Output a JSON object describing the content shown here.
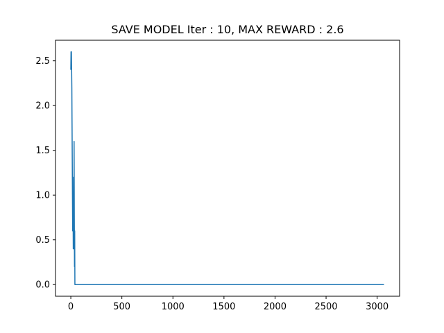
{
  "chart_data": {
    "type": "line",
    "title": "SAVE MODEL Iter : 10, MAX REWARD : 2.6",
    "xlabel": "",
    "ylabel": "",
    "xlim": [
      -150,
      3220
    ],
    "ylim": [
      -0.13,
      2.73
    ],
    "x_ticks": [
      0,
      500,
      1000,
      1500,
      2000,
      2500,
      3000
    ],
    "y_ticks": [
      0.0,
      0.5,
      1.0,
      1.5,
      2.0,
      2.5
    ],
    "x_tick_labels": [
      "0",
      "500",
      "1000",
      "1500",
      "2000",
      "2500",
      "3000"
    ],
    "y_tick_labels": [
      "0.0",
      "0.5",
      "1.0",
      "1.5",
      "2.0",
      "2.5"
    ],
    "grid": false,
    "legend": "none",
    "series": [
      {
        "color": "#1f77b4",
        "x": [
          0,
          2,
          4,
          6,
          8,
          10,
          12,
          14,
          16,
          18,
          20,
          22,
          24,
          26,
          28,
          30,
          32,
          34,
          36,
          38,
          40,
          42,
          44,
          46,
          48,
          50,
          52,
          54,
          56,
          58,
          60,
          3067
        ],
        "y": [
          2.4,
          2.6,
          2.6,
          2.6,
          2.4,
          2.2,
          1.8,
          1.4,
          1.0,
          0.6,
          1.2,
          0.8,
          0.4,
          1.0,
          0.6,
          0.4,
          1.6,
          0.8,
          0.2,
          0.6,
          0.0,
          0.0,
          0.0,
          0.0,
          0.0,
          0.0,
          0.0,
          0.0,
          0.0,
          0.0,
          0.0,
          0.0
        ]
      }
    ]
  }
}
